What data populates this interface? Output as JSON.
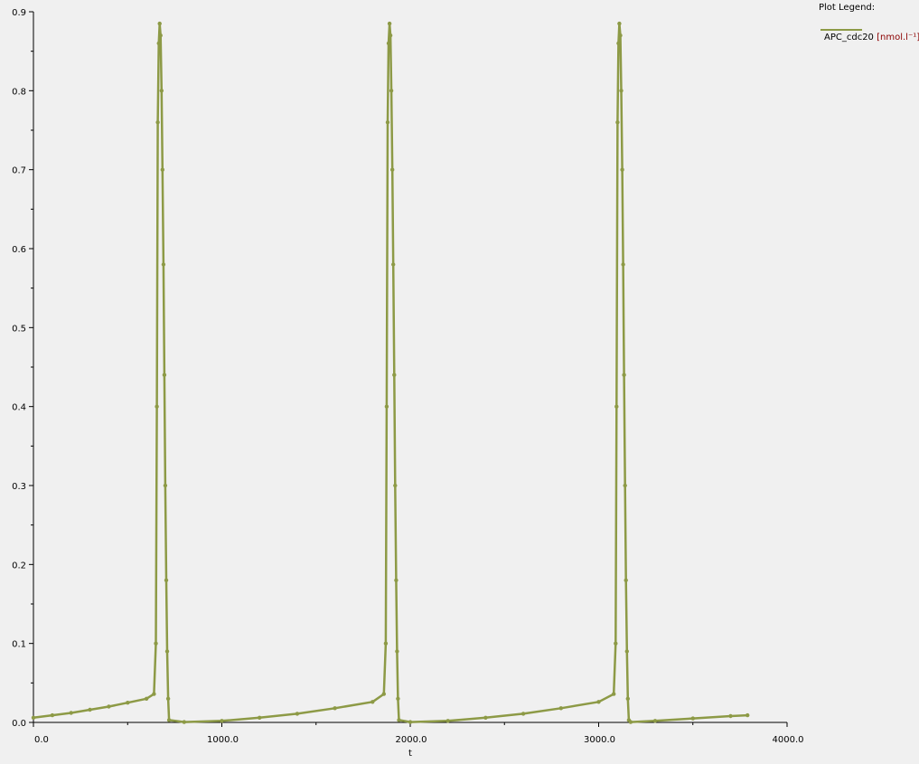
{
  "legend": {
    "title": "Plot Legend:",
    "series_label": "APC_cdc20",
    "series_unit": "[nmol.l⁻¹]"
  },
  "colors": {
    "series": "#8d9a46",
    "axis": "#000000",
    "background": "#f0f0f0"
  },
  "chart_data": {
    "type": "line",
    "xlabel": "t",
    "ylabel": "",
    "title": "",
    "xlim": [
      0,
      4000
    ],
    "ylim": [
      0,
      0.9
    ],
    "x_ticks": [
      0,
      1000,
      2000,
      3000,
      4000
    ],
    "x_tick_labels": [
      "0.0",
      "1000.0",
      "2000.0",
      "3000.0",
      "4000.0"
    ],
    "y_ticks": [
      0,
      0.1,
      0.2,
      0.3,
      0.4,
      0.5,
      0.6,
      0.7,
      0.8,
      0.9
    ],
    "y_tick_labels": [
      "0.0",
      "0.1",
      "0.2",
      "0.3",
      "0.4",
      "0.5",
      "0.6",
      "0.7",
      "0.8",
      "0.9"
    ],
    "grid": false,
    "legend_position": "top-right",
    "series": [
      {
        "name": "APC_cdc20",
        "x": [
          0,
          100,
          200,
          300,
          400,
          500,
          600,
          640,
          650,
          655,
          660,
          665,
          670,
          675,
          680,
          685,
          690,
          695,
          700,
          705,
          710,
          715,
          720,
          800,
          1000,
          1200,
          1400,
          1600,
          1800,
          1860,
          1870,
          1875,
          1880,
          1885,
          1890,
          1895,
          1900,
          1905,
          1910,
          1915,
          1920,
          1925,
          1930,
          1935,
          1940,
          2000,
          2200,
          2400,
          2600,
          2800,
          3000,
          3080,
          3090,
          3095,
          3100,
          3105,
          3110,
          3115,
          3120,
          3125,
          3130,
          3135,
          3140,
          3145,
          3150,
          3155,
          3160,
          3170,
          3300,
          3500,
          3700,
          3790
        ],
        "y": [
          0.006,
          0.009,
          0.012,
          0.016,
          0.02,
          0.025,
          0.03,
          0.036,
          0.1,
          0.4,
          0.76,
          0.86,
          0.885,
          0.87,
          0.8,
          0.7,
          0.58,
          0.44,
          0.3,
          0.18,
          0.09,
          0.03,
          0.003,
          0.0005,
          0.002,
          0.006,
          0.011,
          0.018,
          0.026,
          0.036,
          0.1,
          0.4,
          0.76,
          0.86,
          0.885,
          0.87,
          0.8,
          0.7,
          0.58,
          0.44,
          0.3,
          0.18,
          0.09,
          0.03,
          0.003,
          0.0005,
          0.002,
          0.006,
          0.011,
          0.018,
          0.026,
          0.036,
          0.1,
          0.4,
          0.76,
          0.86,
          0.885,
          0.87,
          0.8,
          0.7,
          0.58,
          0.44,
          0.3,
          0.18,
          0.09,
          0.03,
          0.003,
          0.0005,
          0.002,
          0.005,
          0.008,
          0.009
        ]
      }
    ]
  }
}
